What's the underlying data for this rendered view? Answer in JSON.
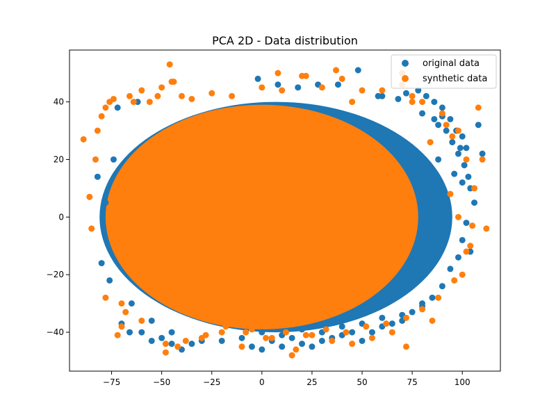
{
  "chart_data": {
    "type": "scatter",
    "title": "PCA 2D - Data distribution",
    "xlabel": "",
    "ylabel": "",
    "xlim": [
      -96,
      119
    ],
    "ylim": [
      -53.5,
      58
    ],
    "x_ticks": [
      -75,
      -50,
      -25,
      0,
      25,
      50,
      75,
      100
    ],
    "y_ticks": [
      -40,
      -20,
      0,
      20,
      40
    ],
    "x_tick_labels": [
      "−75",
      "−50",
      "−25",
      "0",
      "25",
      "50",
      "75",
      "100"
    ],
    "y_tick_labels": [
      "−40",
      "−20",
      "0",
      "20",
      "40"
    ],
    "grid": false,
    "legend": "top-right",
    "series": [
      {
        "name": "original data",
        "color": "#1f77b4",
        "x": [
          -82,
          -80,
          -78,
          -76,
          -74,
          -70,
          -66,
          -60,
          -55,
          -50,
          -45,
          -40,
          -35,
          -30,
          -20,
          -10,
          -5,
          0,
          5,
          10,
          15,
          20,
          25,
          30,
          35,
          40,
          45,
          50,
          55,
          60,
          65,
          70,
          75,
          80,
          85,
          88,
          90,
          92,
          95,
          98,
          100,
          102,
          104,
          106,
          108,
          110,
          -72,
          -62,
          60,
          72,
          78,
          82,
          86,
          90,
          94,
          97,
          99,
          101,
          103,
          -2,
          8,
          18,
          28,
          38,
          48,
          58,
          68,
          88,
          96,
          100,
          104,
          -65,
          -55,
          -45,
          0,
          10,
          20,
          30,
          40,
          50,
          60,
          70,
          80,
          90,
          94,
          98,
          100,
          102,
          80,
          86
        ],
        "y": [
          14,
          -16,
          5,
          -22,
          20,
          -37,
          -40,
          -40,
          -43,
          -42,
          -44,
          -46,
          -44,
          -43,
          -43,
          -42,
          -45,
          -46,
          -43,
          -45,
          -42,
          -44,
          -45,
          -43,
          -42,
          -41,
          -40,
          -43,
          -40,
          -38,
          -37,
          -36,
          -33,
          -30,
          -28,
          32,
          35,
          30,
          26,
          22,
          28,
          24,
          10,
          5,
          32,
          22,
          38,
          40,
          42,
          43,
          44,
          42,
          40,
          38,
          34,
          30,
          24,
          18,
          14,
          48,
          46,
          45,
          46,
          46,
          51,
          42,
          41,
          20,
          15,
          12,
          -12,
          -30,
          -36,
          -40,
          -40,
          -41,
          -39,
          -40,
          -38,
          -37,
          -35,
          -34,
          -31,
          -24,
          -18,
          -14,
          -8,
          -2,
          36,
          34
        ]
      },
      {
        "name": "synthetic data",
        "color": "#ff7f0e",
        "x": [
          -89,
          -86,
          -85,
          -83,
          -82,
          -80,
          -78,
          -76,
          -74,
          -72,
          -70,
          -68,
          -66,
          -64,
          -60,
          -56,
          -52,
          -50,
          -48,
          -46,
          -44,
          -42,
          -40,
          -35,
          -30,
          -25,
          -20,
          -15,
          -10,
          -5,
          0,
          5,
          10,
          15,
          20,
          25,
          30,
          35,
          40,
          45,
          50,
          55,
          60,
          65,
          70,
          72,
          75,
          80,
          85,
          90,
          92,
          95,
          98,
          100,
          102,
          105,
          108,
          110,
          112,
          -78,
          -70,
          -60,
          -48,
          -38,
          -28,
          -18,
          -8,
          2,
          12,
          22,
          32,
          42,
          52,
          62,
          72,
          80,
          88,
          96,
          104,
          -45,
          8,
          22,
          37,
          17,
          45,
          70,
          75,
          84,
          94,
          98,
          102,
          106
        ],
        "y": [
          27,
          7,
          -4,
          20,
          30,
          35,
          38,
          40,
          41,
          -41,
          -38,
          -33,
          42,
          40,
          44,
          40,
          42,
          45,
          -47,
          53,
          47,
          -45,
          42,
          41,
          -42,
          43,
          -40,
          42,
          -45,
          -39,
          45,
          -42,
          44,
          -48,
          49,
          -41,
          45,
          -43,
          48,
          -44,
          44,
          -42,
          44,
          -40,
          50,
          -45,
          42,
          40,
          -36,
          36,
          32,
          28,
          30,
          -20,
          20,
          -3,
          38,
          20,
          -4,
          -28,
          -30,
          -36,
          -44,
          -43,
          -41,
          -38,
          -40,
          -42,
          -40,
          -41,
          -39,
          -40,
          -38,
          -37,
          -35,
          -32,
          -28,
          -22,
          -10,
          47,
          50,
          49,
          51,
          -46,
          40,
          46,
          40,
          26,
          8,
          0,
          -12,
          10
        ]
      }
    ]
  }
}
